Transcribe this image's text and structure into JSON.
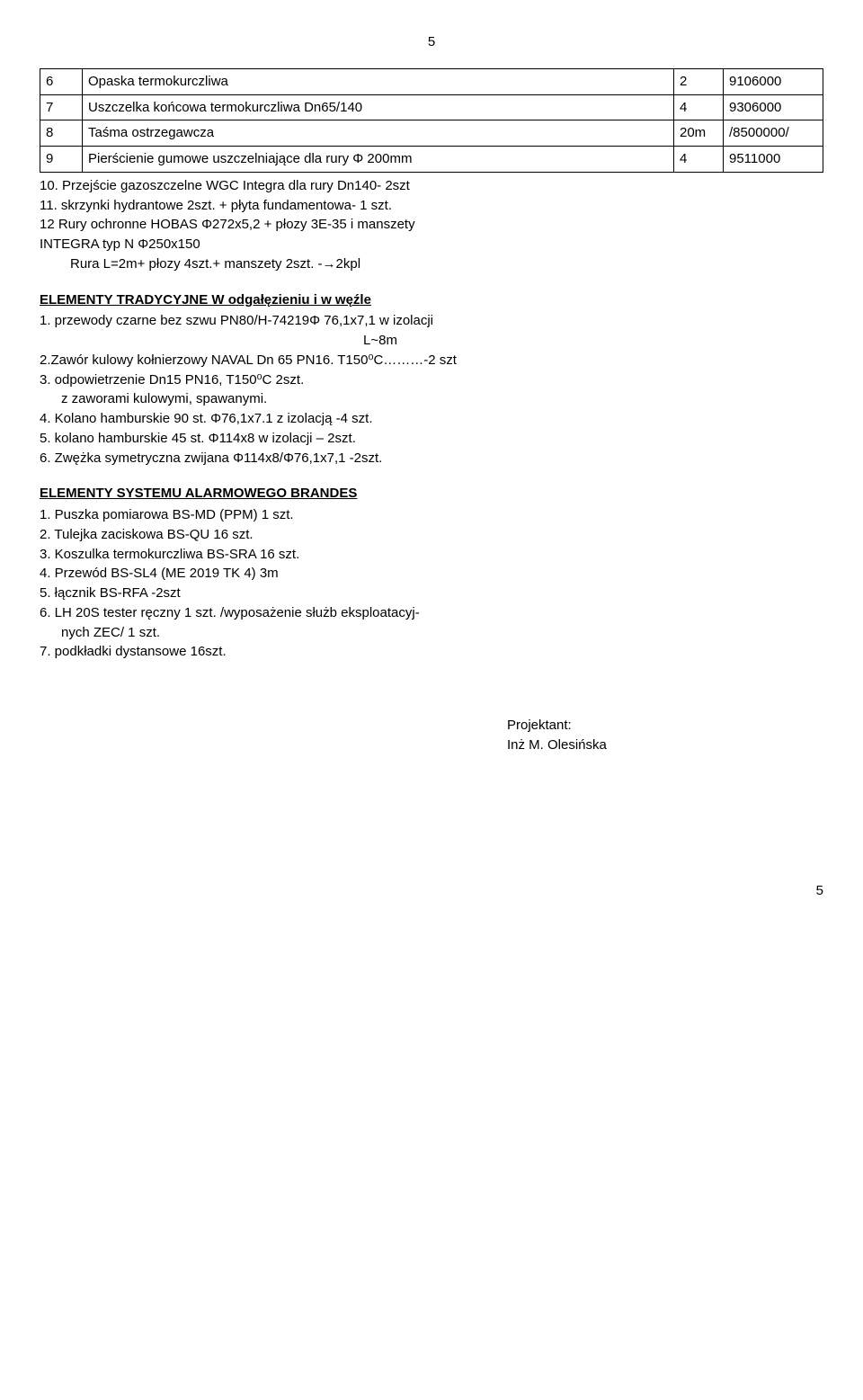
{
  "pageTop": "5",
  "pageBottom": "5",
  "table": {
    "rows": [
      {
        "idx": "6",
        "desc": "Opaska termokurczliwa",
        "qty": "2",
        "code": "9106000"
      },
      {
        "idx": "7",
        "desc": "Uszczelka końcowa termokurczliwa Dn65/140",
        "qty": "4",
        "code": "9306000"
      },
      {
        "idx": "8",
        "desc": "Taśma ostrzegawcza",
        "qty": "20m",
        "code": "/8500000/"
      },
      {
        "idx": "9",
        "desc": "Pierścienie gumowe uszczelniające dla rury Φ 200mm",
        "qty": "4",
        "code": "9511000"
      }
    ]
  },
  "afterTable": {
    "l1": "10. Przejście gazoszczelne WGC Integra dla rury Dn140- 2szt",
    "l2": "11. skrzynki hydrantowe 2szt. + płyta fundamentowa- 1 szt.",
    "l3": "12 Rury ochronne HOBAS Φ272x5,2 + płozy 3E-35 i manszety",
    "l4": "INTEGRA typ N Φ250x150",
    "l5": "Rura L=2m+ płozy 4szt.+ manszety 2szt. -→2kpl"
  },
  "section1": {
    "title": "ELEMENTY TRADYCYJNE W odgałęzieniu i w węźle",
    "l1": "1. przewody czarne bez szwu PN80/H-74219Φ 76,1x7,1 w izolacji",
    "l1b": "L~8m",
    "l2": "2.Zawór kulowy kołnierzowy NAVAL Dn 65 PN16. T150⁰C………-2 szt",
    "l3": "3. odpowietrzenie Dn15 PN16, T150⁰C    2szt.",
    "l3b": "z zaworami kulowymi, spawanymi.",
    "l4": "4. Kolano hamburskie 90 st. Φ76,1x7.1 z izolacją -4 szt.",
    "l5": "5. kolano hamburskie 45 st. Φ114x8 w izolacji – 2szt.",
    "l6": "6. Zwężka symetryczna zwijana Φ114x8/Φ76,1x7,1 -2szt."
  },
  "section2": {
    "title": "ELEMENTY SYSTEMU ALARMOWEGO BRANDES",
    "l1": "1. Puszka pomiarowa BS-MD (PPM)               1 szt.",
    "l2": "2. Tulejka zaciskowa BS-QU             16 szt.",
    "l3": "3. Koszulka termokurczliwa BS-SRA    16 szt.",
    "l4": "4. Przewód BS-SL4 (ME 2019 TK 4)       3m",
    "l5": "5. łącznik BS-RFA -2szt",
    "l6": "6. LH 20S tester ręczny          1 szt. /wyposażenie służb eksploatacyj-",
    "l6b": "nych ZEC/       1 szt.",
    "l7": "7. podkładki dystansowe  16szt."
  },
  "signature": {
    "l1": "Projektant:",
    "l2": "Inż M. Olesińska"
  }
}
